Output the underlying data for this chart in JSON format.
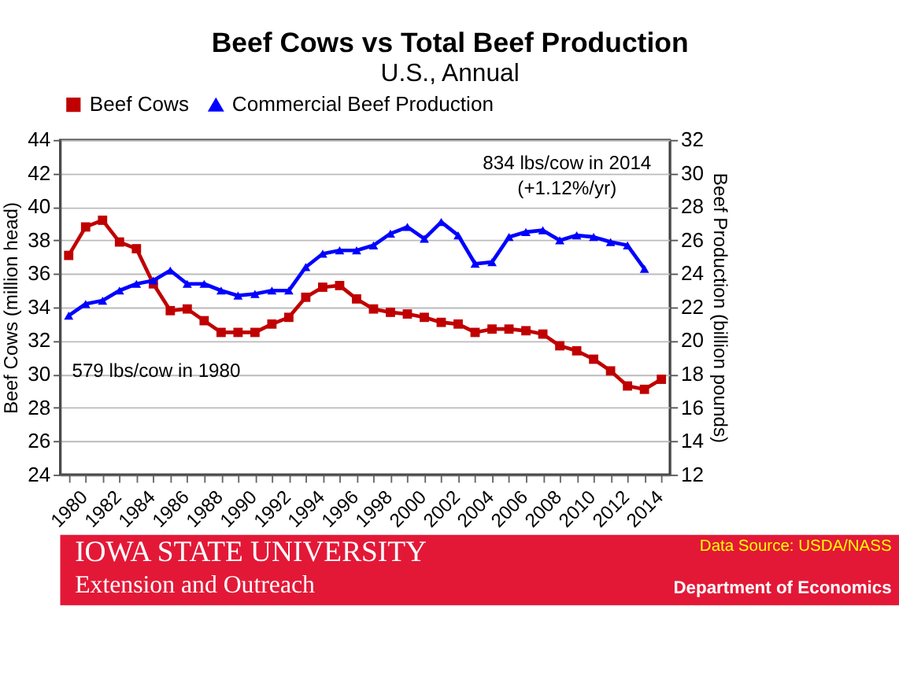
{
  "chart_data": {
    "type": "line",
    "title": "Beef Cows vs Total Beef Production",
    "subtitle": "U.S., Annual",
    "ylabel": "Beef Cows (million head)",
    "y2label": "Beef Production (billion pounds)",
    "categories": [
      "1980",
      null,
      "1982",
      null,
      "1984",
      null,
      "1986",
      null,
      "1988",
      null,
      "1990",
      null,
      "1992",
      null,
      "1994",
      null,
      "1996",
      null,
      "1998",
      null,
      "2000",
      null,
      "2002",
      null,
      "2004",
      null,
      "2006",
      null,
      "2008",
      null,
      "2010",
      null,
      "2012",
      null,
      "2014",
      null
    ],
    "series": [
      {
        "name": "Beef Cows",
        "color": "#c00000",
        "marker": "square",
        "values": [
          37.1,
          38.8,
          39.2,
          37.9,
          37.5,
          35.4,
          33.8,
          33.9,
          33.2,
          32.5,
          32.5,
          32.5,
          33.0,
          33.4,
          34.6,
          35.2,
          35.3,
          34.5,
          33.9,
          33.7,
          33.6,
          33.4,
          33.1,
          33.0,
          32.5,
          32.7,
          32.7,
          32.6,
          32.4,
          31.7,
          31.4,
          30.9,
          30.2,
          29.3,
          29.1,
          29.7
        ]
      },
      {
        "name": "Commercial Beef Production",
        "color": "#0000ff",
        "marker": "triangle",
        "axis": "y2",
        "values": [
          21.5,
          22.2,
          22.4,
          23.0,
          23.4,
          23.6,
          24.2,
          23.4,
          23.4,
          23.0,
          22.7,
          22.8,
          23.0,
          23.0,
          24.4,
          25.2,
          25.4,
          25.4,
          25.7,
          26.4,
          26.8,
          26.1,
          27.1,
          26.3,
          24.6,
          24.7,
          26.2,
          26.5,
          26.6,
          26.0,
          26.3,
          26.2,
          25.9,
          25.7,
          24.3,
          null
        ]
      }
    ],
    "ylim": [
      24,
      44
    ],
    "yticks": [
      24,
      26,
      28,
      30,
      32,
      34,
      36,
      38,
      40,
      42,
      44
    ],
    "y2lim": [
      12,
      32
    ],
    "y2ticks": [
      12,
      14,
      16,
      18,
      20,
      22,
      24,
      26,
      28,
      30,
      32
    ],
    "grid": "y",
    "legend": "top",
    "line_style": "solid",
    "annotations": [
      "579 lbs/cow in 1980",
      "834 lbs/cow in 2014\n(+1.12%/yr)",
      "IOWA STATE UNIVERSITY",
      "Extension and Outreach",
      "Data Source: USDA/NASS",
      "Department of Economics"
    ]
  }
}
